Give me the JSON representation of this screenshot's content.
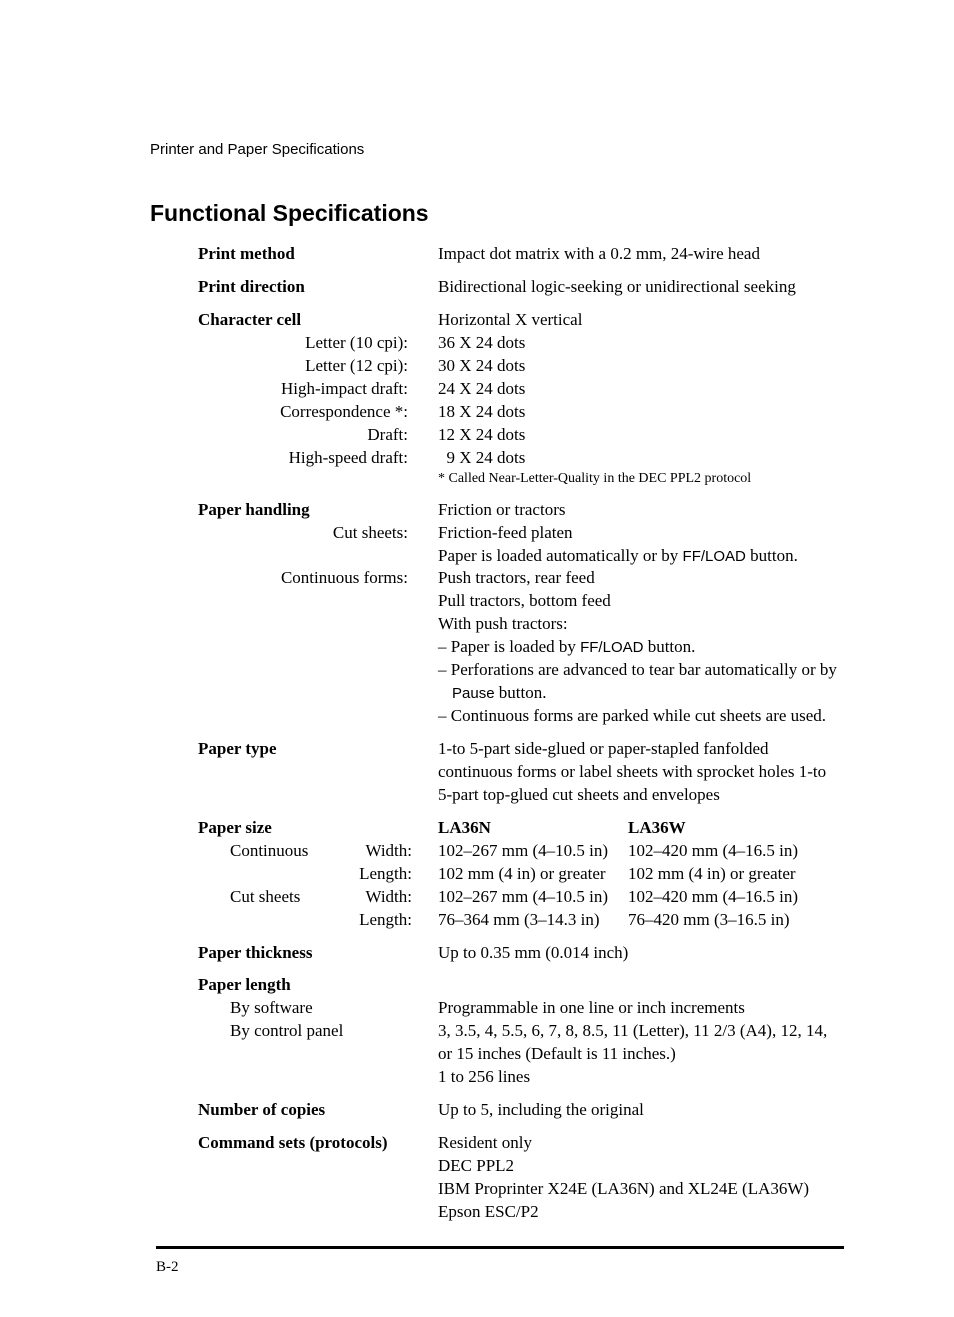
{
  "page": {
    "crumb": "Printer and Paper Specifications",
    "title": "Functional Specifications",
    "rule_color": "#000000",
    "page_number": "B-2"
  },
  "specs": {
    "print_method": {
      "label": "Print method",
      "value": "Impact dot matrix with a 0.2 mm, 24-wire head"
    },
    "print_direction": {
      "label": "Print direction",
      "value": "Bidirectional logic-seeking or unidirectional seeking"
    },
    "char_cell": {
      "label": "Character cell",
      "header": "Horizontal X vertical",
      "items": [
        {
          "l": "Letter (10 cpi):",
          "v": "36 X 24 dots"
        },
        {
          "l": "Letter (12 cpi):",
          "v": "30 X 24 dots"
        },
        {
          "l": "High-impact draft:",
          "v": "24 X 24 dots"
        },
        {
          "l": "Correspondence *:",
          "v": "18 X 24 dots"
        },
        {
          "l": "Draft:",
          "v": "12 X 24 dots"
        },
        {
          "l": "High-speed draft:",
          "v": "  9 X 24 dots"
        }
      ],
      "footnote": "* Called Near-Letter-Quality in the DEC PPL2 protocol"
    },
    "paper_handling": {
      "label": "Paper handling",
      "header": "Friction or tractors",
      "cut_label": "Cut sheets:",
      "cut_val1": "Friction-feed platen",
      "cut_val2_a": "Paper is loaded automatically or by ",
      "cut_val2_btn": "FF/LOAD",
      "cut_val2_b": " button.",
      "cont_label": "Continuous forms:",
      "cont_vals": [
        "Push tractors, rear feed",
        "Pull tractors, bottom feed",
        "With push tractors:"
      ],
      "cont_bul1_a": "Paper is loaded by ",
      "cont_bul1_btn": "FF/LOAD",
      "cont_bul1_b": " button.",
      "cont_bul2_a": "Perforations are advanced to tear bar automatically or by ",
      "cont_bul2_btn": "Pause",
      "cont_bul2_b": " button.",
      "cont_bul3": "Continuous forms are parked while cut sheets are used."
    },
    "paper_type": {
      "label": "Paper type",
      "v1": "1-to 5-part side-glued or paper-stapled fanfolded continuous forms or label sheets with sprocket holes 1-to 5-part top-glued cut sheets and envelopes"
    },
    "paper_size": {
      "label": "Paper size",
      "head_n": "LA36N",
      "head_w": "LA36W",
      "rows": [
        {
          "g": "Continuous",
          "d": "Width:",
          "n": "102–267 mm (4–10.5 in)",
          "w": "102–420 mm (4–16.5 in)"
        },
        {
          "g": "",
          "d": "Length:",
          "n": "102 mm (4 in) or greater",
          "w": "102 mm (4 in) or greater"
        },
        {
          "g": "Cut sheets",
          "d": "Width:",
          "n": "102–267 mm (4–10.5 in)",
          "w": "102–420 mm (4–16.5 in)"
        },
        {
          "g": "",
          "d": "Length:",
          "n": "76–364 mm (3–14.3 in)",
          "w": "76–420 mm (3–16.5 in)"
        }
      ]
    },
    "paper_thickness": {
      "label": "Paper thickness",
      "value": "Up to 0.35 mm (0.014 inch)"
    },
    "paper_length": {
      "label": "Paper length",
      "soft_label": "By software",
      "soft_val": "Programmable in one line or inch increments",
      "cp_label": "By control panel",
      "cp_v1": "3, 3.5, 4, 5.5, 6, 7, 8, 8.5, 11 (Letter), 11 2/3 (A4), 12, 14, or 15 inches  (Default is 11 inches.)",
      "cp_v2": "1 to 256 lines"
    },
    "copies": {
      "label": "Number of copies",
      "value": "Up to 5, including the original"
    },
    "cmdsets": {
      "label": "Command sets (protocols)",
      "vals": [
        "Resident only",
        "DEC PPL2",
        "IBM Proprinter X24E (LA36N) and XL24E (LA36W)",
        "Epson ESC/P2"
      ]
    }
  }
}
